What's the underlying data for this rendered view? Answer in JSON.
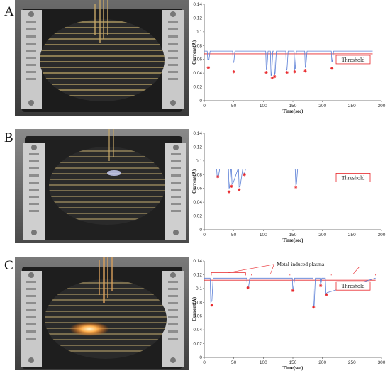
{
  "panels": [
    {
      "letter": "A"
    },
    {
      "letter": "B"
    },
    {
      "letter": "C"
    }
  ],
  "chart_data": [
    {
      "type": "line",
      "panel": "A",
      "xlabel": "Time(sec)",
      "ylabel": "Current(A)",
      "xlim": [
        0,
        300
      ],
      "ylim": [
        0,
        0.14
      ],
      "xticks": [
        0,
        50,
        100,
        150,
        200,
        250,
        300
      ],
      "yticks": [
        0,
        0.02,
        0.04,
        0.06,
        0.08,
        0.1,
        0.12,
        0.14
      ],
      "threshold": {
        "label": "Threshold",
        "value": 0.068,
        "color": "#e8262a"
      },
      "series": [
        {
          "color": "#5b7fd6",
          "x": [
            0,
            5,
            6,
            8,
            10,
            48,
            49,
            50,
            52,
            104,
            105,
            106,
            108,
            112,
            113,
            114,
            116,
            118,
            119,
            120,
            122,
            138,
            139,
            140,
            142,
            152,
            153,
            154,
            156,
            170,
            171,
            172,
            174,
            215,
            216,
            217,
            219,
            285
          ],
          "y": [
            0.072,
            0.072,
            0.06,
            0.06,
            0.072,
            0.072,
            0.055,
            0.056,
            0.072,
            0.072,
            0.045,
            0.046,
            0.072,
            0.072,
            0.036,
            0.038,
            0.072,
            0.072,
            0.037,
            0.04,
            0.072,
            0.072,
            0.044,
            0.045,
            0.072,
            0.072,
            0.045,
            0.046,
            0.072,
            0.072,
            0.048,
            0.05,
            0.072,
            0.072,
            0.056,
            0.058,
            0.072,
            0.072
          ]
        }
      ],
      "markers": {
        "x": [
          7,
          50,
          105,
          115,
          119,
          140,
          153,
          171,
          216
        ],
        "y": [
          0.048,
          0.042,
          0.041,
          0.033,
          0.035,
          0.041,
          0.042,
          0.043,
          0.047
        ],
        "color": "#e8262a"
      }
    },
    {
      "type": "line",
      "panel": "B",
      "xlabel": "Time(sec)",
      "ylabel": "Current(A)",
      "xlim": [
        0,
        300
      ],
      "ylim": [
        0,
        0.14
      ],
      "xticks": [
        0,
        50,
        100,
        150,
        200,
        250,
        300
      ],
      "yticks": [
        0,
        0.02,
        0.04,
        0.06,
        0.08,
        0.1,
        0.12,
        0.14
      ],
      "threshold": {
        "label": "Threshold",
        "value": 0.084,
        "color": "#e8262a"
      },
      "series": [
        {
          "color": "#5b7fd6",
          "x": [
            0,
            21,
            22,
            24,
            26,
            41,
            42,
            43,
            45,
            46,
            47,
            49,
            57,
            58,
            59,
            61,
            65,
            66,
            68,
            70,
            154,
            155,
            156,
            158,
            275
          ],
          "y": [
            0.088,
            0.088,
            0.076,
            0.077,
            0.088,
            0.088,
            0.06,
            0.062,
            0.088,
            0.088,
            0.066,
            0.068,
            0.088,
            0.088,
            0.062,
            0.064,
            0.088,
            0.08,
            0.082,
            0.088,
            0.088,
            0.064,
            0.066,
            0.088,
            0.088
          ]
        }
      ],
      "markers": {
        "x": [
          23,
          42,
          46,
          59,
          68,
          155
        ],
        "y": [
          0.077,
          0.055,
          0.063,
          0.058,
          0.08,
          0.062
        ],
        "color": "#e8262a"
      }
    },
    {
      "type": "line",
      "panel": "C",
      "xlabel": "Time(sec)",
      "ylabel": "Current(A)",
      "xlim": [
        0,
        300
      ],
      "ylim": [
        0,
        0.14
      ],
      "xticks": [
        0,
        50,
        100,
        150,
        200,
        250,
        300
      ],
      "yticks": [
        0,
        0.02,
        0.04,
        0.06,
        0.08,
        0.1,
        0.12,
        0.14
      ],
      "threshold": {
        "label": "Threshold",
        "value": 0.112,
        "color": "#e8262a"
      },
      "annotation": {
        "label": "Metal-induced plasma",
        "color": "#e8262a"
      },
      "series": [
        {
          "color": "#5b7fd6",
          "x": [
            0,
            10,
            11,
            13,
            15,
            72,
            73,
            75,
            77,
            149,
            150,
            151,
            153,
            184,
            185,
            186,
            188,
            196,
            197,
            199,
            205,
            206,
            208,
            290
          ],
          "y": [
            0.115,
            0.115,
            0.08,
            0.082,
            0.115,
            0.115,
            0.1,
            0.102,
            0.115,
            0.115,
            0.098,
            0.1,
            0.115,
            0.115,
            0.072,
            0.075,
            0.115,
            0.115,
            0.104,
            0.115,
            0.115,
            0.092,
            0.094,
            0.115
          ]
        }
      ],
      "markers": {
        "x": [
          13,
          74,
          150,
          185,
          197,
          207
        ],
        "y": [
          0.076,
          0.101,
          0.097,
          0.073,
          0.104,
          0.091
        ],
        "color": "#e8262a"
      }
    }
  ]
}
